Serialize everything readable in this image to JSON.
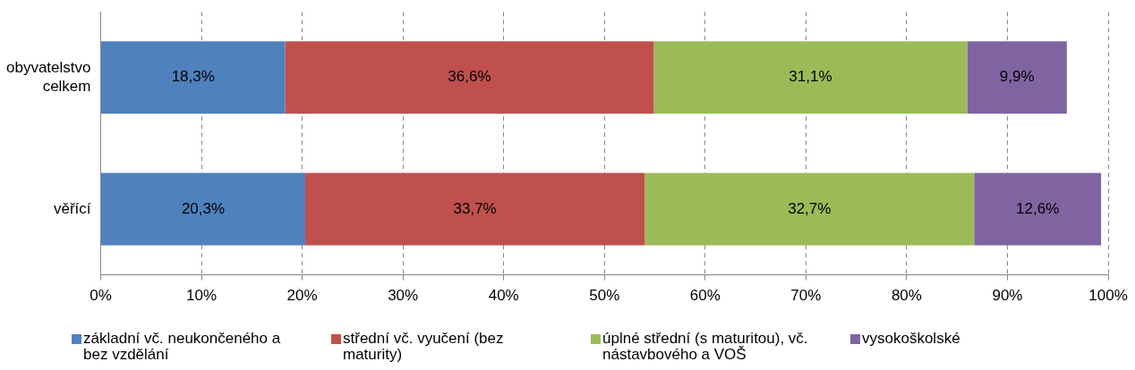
{
  "chart_data": {
    "type": "bar",
    "orientation": "horizontal",
    "stacked": true,
    "categories": [
      "obyvatelstvo celkem",
      "věřící"
    ],
    "series": [
      {
        "name": "základní vč. neukončeného a bez vzdělání",
        "color": "#4f81bd",
        "values": [
          18.3,
          20.3
        ],
        "value_labels": [
          "18,3%",
          "20,3%"
        ]
      },
      {
        "name": "střední vč. vyučení (bez maturity)",
        "color": "#c0504d",
        "values": [
          36.6,
          33.7
        ],
        "value_labels": [
          "36,6%",
          "33,7%"
        ]
      },
      {
        "name": "úplné střední (s maturitou), vč. nástavbového a VOŠ",
        "color": "#9bbb59",
        "values": [
          31.1,
          32.7
        ],
        "value_labels": [
          "31,1%",
          "32,7%"
        ]
      },
      {
        "name": "vysokoškolské",
        "color": "#8064a2",
        "values": [
          9.9,
          12.6
        ],
        "value_labels": [
          "9,9%",
          "12,6%"
        ]
      }
    ],
    "xlim": [
      0,
      100
    ],
    "xticks": [
      {
        "value": 0,
        "label": "0%"
      },
      {
        "value": 10,
        "label": "10%"
      },
      {
        "value": 20,
        "label": "20%"
      },
      {
        "value": 30,
        "label": "30%"
      },
      {
        "value": 40,
        "label": "40%"
      },
      {
        "value": 50,
        "label": "50%"
      },
      {
        "value": 60,
        "label": "60%"
      },
      {
        "value": 70,
        "label": "70%"
      },
      {
        "value": 80,
        "label": "80%"
      },
      {
        "value": 90,
        "label": "90%"
      },
      {
        "value": 100,
        "label": "100%"
      }
    ],
    "grid": "x",
    "legend": "bottom"
  }
}
